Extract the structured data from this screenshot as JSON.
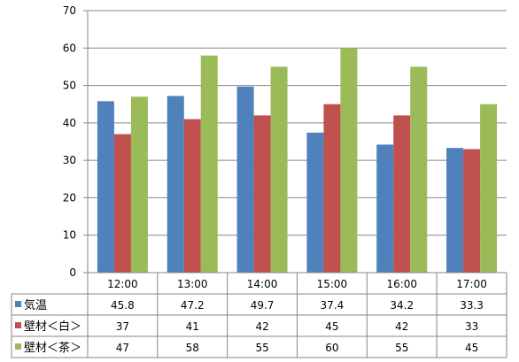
{
  "chart_data": {
    "type": "bar",
    "categories": [
      "12:00",
      "13:00",
      "14:00",
      "15:00",
      "16:00",
      "17:00"
    ],
    "series": [
      {
        "name": "気温",
        "color": "#4F81BD",
        "values": [
          45.8,
          47.2,
          49.7,
          37.4,
          34.2,
          33.3
        ]
      },
      {
        "name": "壁材＜白＞",
        "color": "#C0504D",
        "values": [
          37,
          41,
          42,
          45,
          42,
          33
        ]
      },
      {
        "name": "壁材＜茶＞",
        "color": "#9BBB59",
        "values": [
          47,
          58,
          55,
          60,
          55,
          45
        ]
      }
    ],
    "table_values": [
      [
        "45.8",
        "47.2",
        "49.7",
        "37.4",
        "34.2",
        "33.3"
      ],
      [
        "37",
        "41",
        "42",
        "45",
        "42",
        "33"
      ],
      [
        "47",
        "58",
        "55",
        "60",
        "55",
        "45"
      ]
    ],
    "y_ticks": [
      "0",
      "10",
      "20",
      "30",
      "40",
      "50",
      "60",
      "70"
    ],
    "ylim": [
      0,
      70
    ],
    "grid": true,
    "legend": "data-table",
    "title": "",
    "xlabel": "",
    "ylabel": ""
  }
}
